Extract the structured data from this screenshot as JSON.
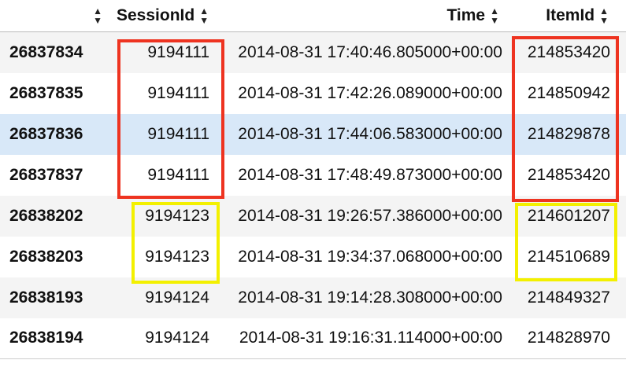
{
  "table": {
    "columns": [
      "",
      "SessionId",
      "Time",
      "ItemId"
    ],
    "sort_icon": "sort-up-down-icon",
    "rows": [
      {
        "index": "26837834",
        "session_id": "9194111",
        "time": "2014-08-31 17:40:46.805000+00:00",
        "item_id": "214853420"
      },
      {
        "index": "26837835",
        "session_id": "9194111",
        "time": "2014-08-31 17:42:26.089000+00:00",
        "item_id": "214850942"
      },
      {
        "index": "26837836",
        "session_id": "9194111",
        "time": "2014-08-31 17:44:06.583000+00:00",
        "item_id": "214829878"
      },
      {
        "index": "26837837",
        "session_id": "9194111",
        "time": "2014-08-31 17:48:49.873000+00:00",
        "item_id": "214853420"
      },
      {
        "index": "26838202",
        "session_id": "9194123",
        "time": "2014-08-31 19:26:57.386000+00:00",
        "item_id": "214601207"
      },
      {
        "index": "26838203",
        "session_id": "9194123",
        "time": "2014-08-31 19:34:37.068000+00:00",
        "item_id": "214510689"
      },
      {
        "index": "26838193",
        "session_id": "9194124",
        "time": "2014-08-31 19:14:28.308000+00:00",
        "item_id": "214849327"
      },
      {
        "index": "26838194",
        "session_id": "9194124",
        "time": "2014-08-31 19:16:31.114000+00:00",
        "item_id": "214828970"
      }
    ]
  },
  "highlight_colors": {
    "red": "#ee3320",
    "yellow": "#f3f000",
    "hover_row": "#d8e8f8"
  }
}
